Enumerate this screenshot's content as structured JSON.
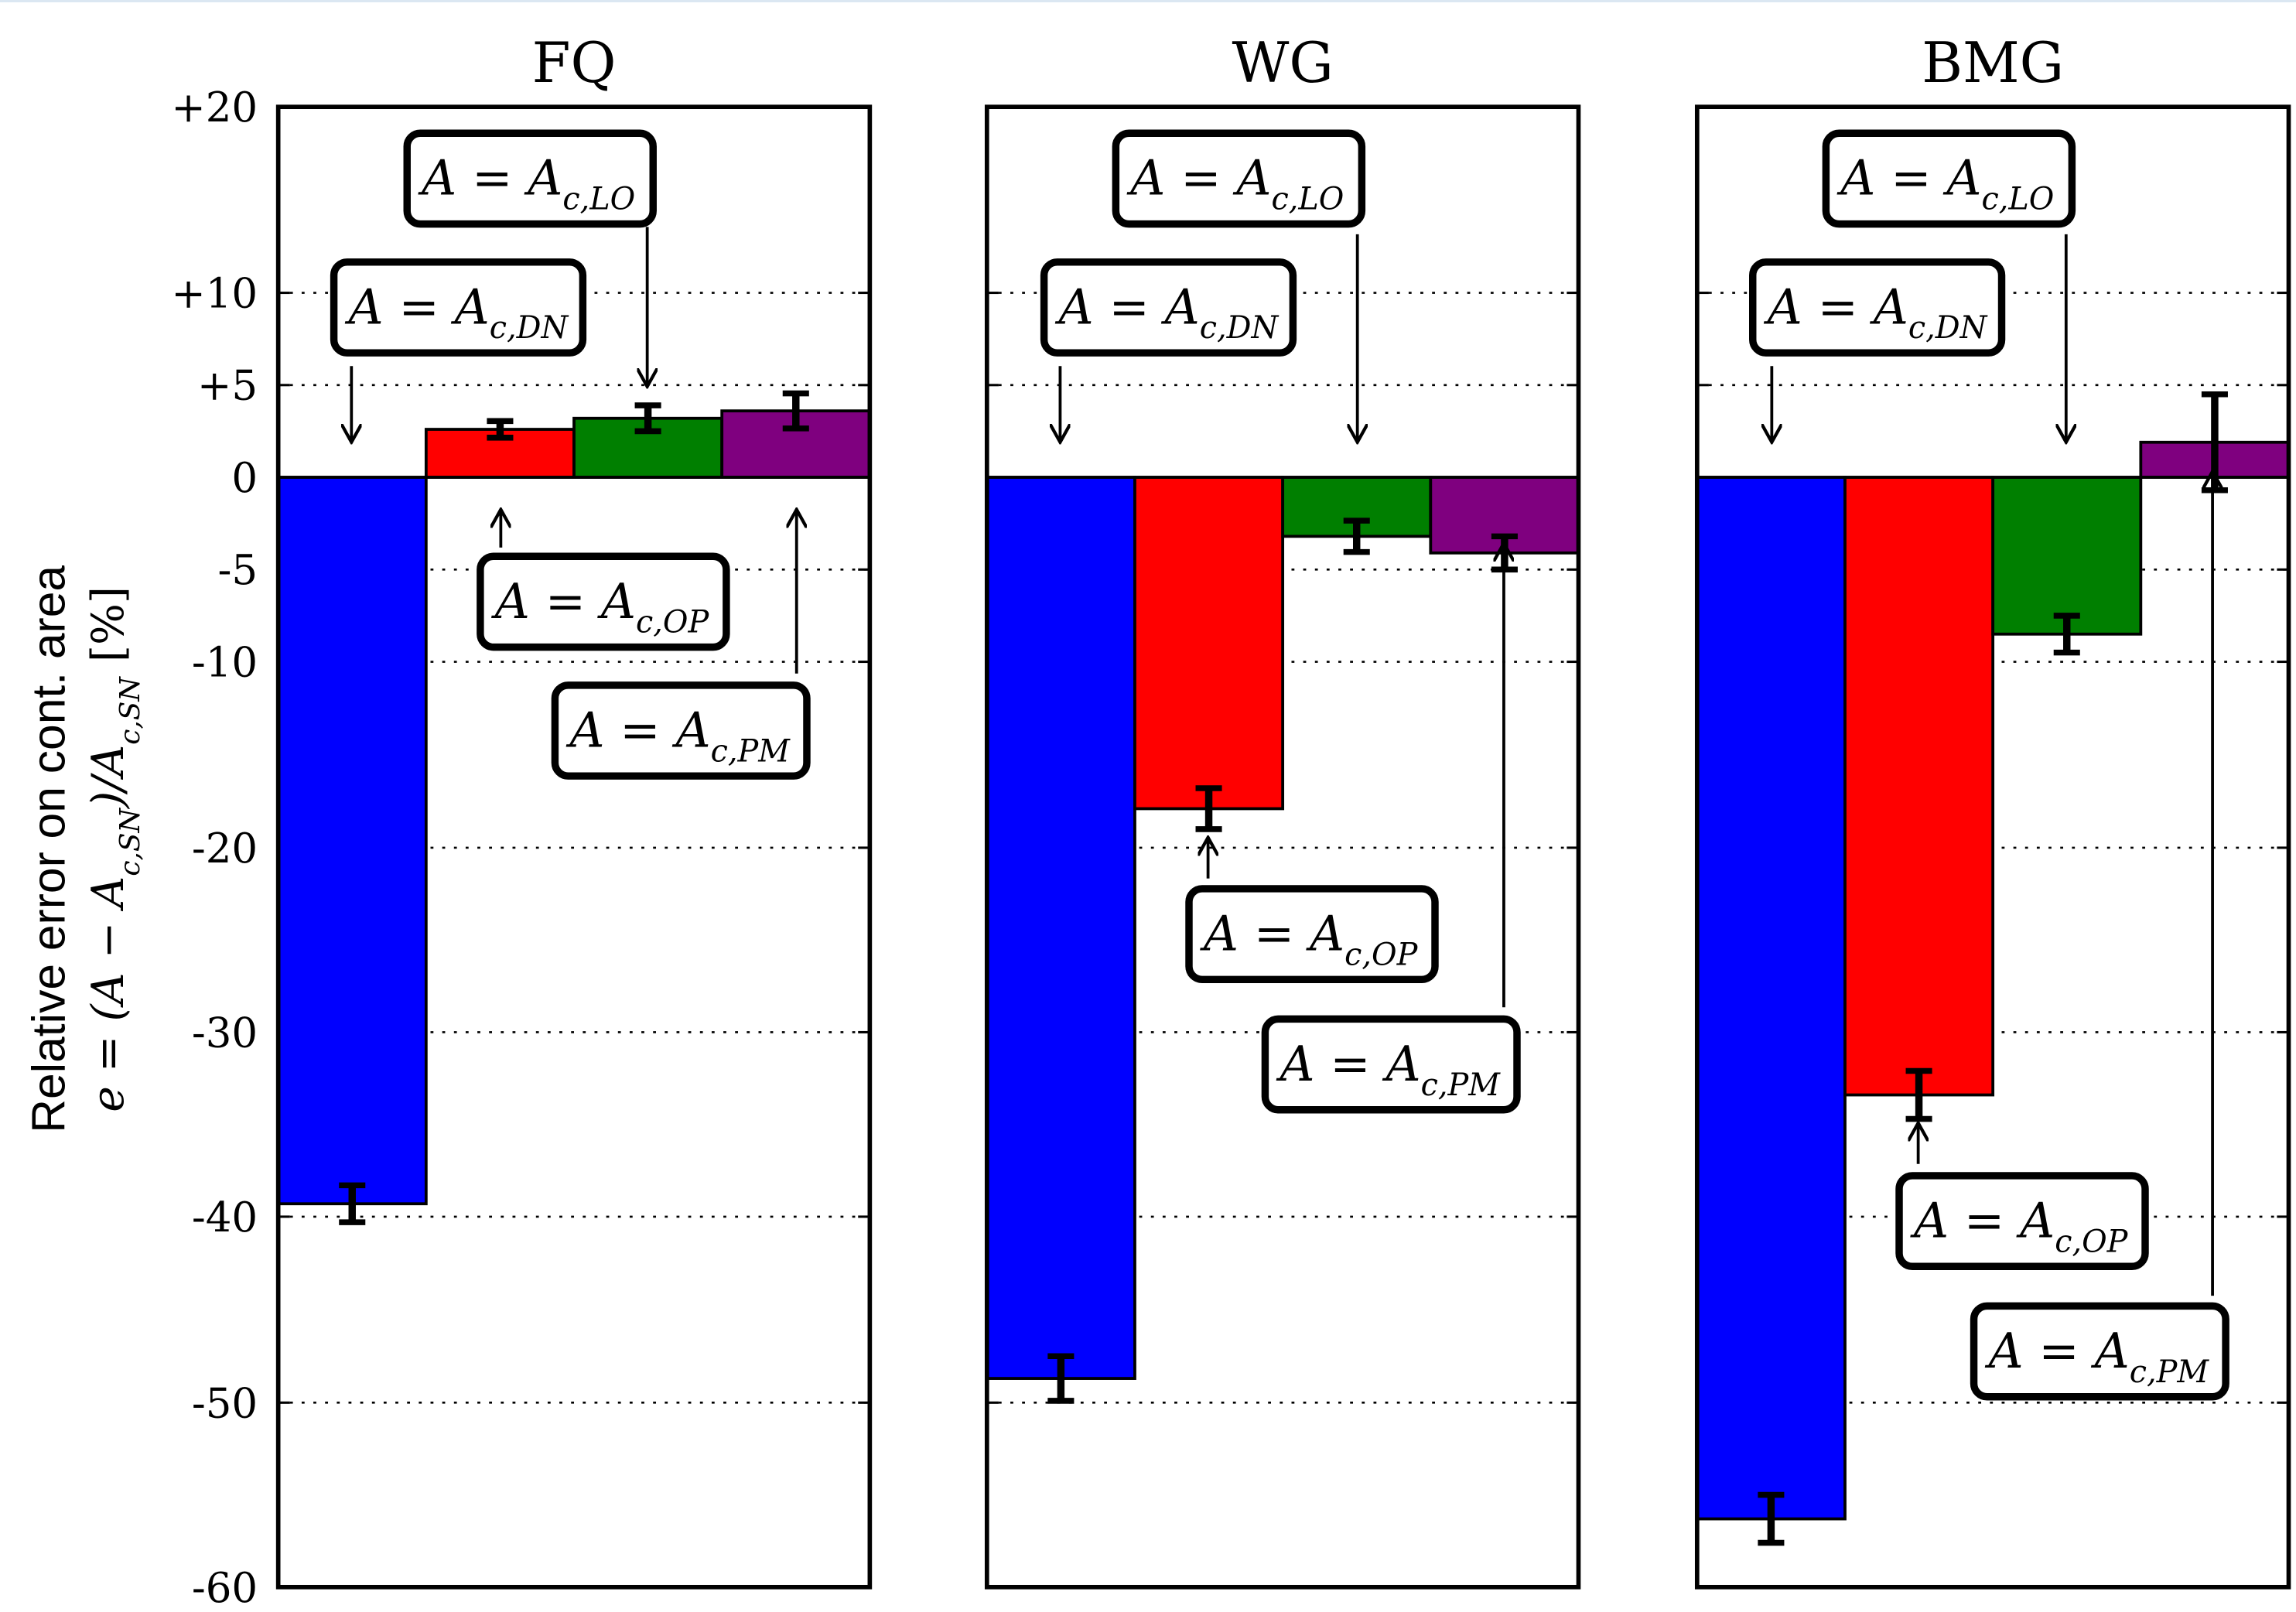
{
  "figure": {
    "ylabel_line1": "Relative error on cont. area",
    "ylabel_line2": "e = (A − A",
    "ylabel_sub1": "c,SN",
    "ylabel_line2b": ")/A",
    "ylabel_sub2": "c,SN",
    "ylabel_unit": "[%]"
  },
  "chart_data": {
    "type": "bar",
    "ylabel": "Relative error on cont. area e=(A−A_c,SN)/A_c,SN [%]",
    "yscale": "symlog",
    "ylim": [
      -60,
      20
    ],
    "yticks": [
      20,
      10,
      5,
      0,
      -5,
      -10,
      -20,
      -30,
      -40,
      -50,
      -60
    ],
    "ytick_labels": [
      "+20",
      "+10",
      "+5",
      "0",
      "-5",
      "-10",
      "-20",
      "-30",
      "-40",
      "-50",
      "-60"
    ],
    "grid": "dotted horizontal at ticks",
    "series_names": [
      "A=A_c,DN",
      "A=A_c,OP",
      "A=A_c,LO",
      "A=A_c,PM"
    ],
    "colors": [
      "#0000ff",
      "#ff0000",
      "#007f00",
      "#7f007f"
    ],
    "panels": [
      {
        "title": "FQ",
        "values": [
          -39.3,
          2.6,
          3.2,
          3.6
        ],
        "errors": [
          1.0,
          0.45,
          0.7,
          0.95
        ]
      },
      {
        "title": "WG",
        "values": [
          -48.7,
          -17.9,
          -3.2,
          -4.1
        ],
        "errors": [
          1.2,
          1.1,
          0.85,
          0.9
        ]
      },
      {
        "title": "BMG",
        "values": [
          -56.3,
          -33.4,
          -8.5,
          1.9
        ],
        "errors": [
          1.3,
          1.3,
          1.0,
          2.6
        ]
      }
    ],
    "annotations": {
      "prefix": "A = A",
      "subs": [
        "c,DN",
        "c,OP",
        "c,LO",
        "c,PM"
      ]
    }
  }
}
